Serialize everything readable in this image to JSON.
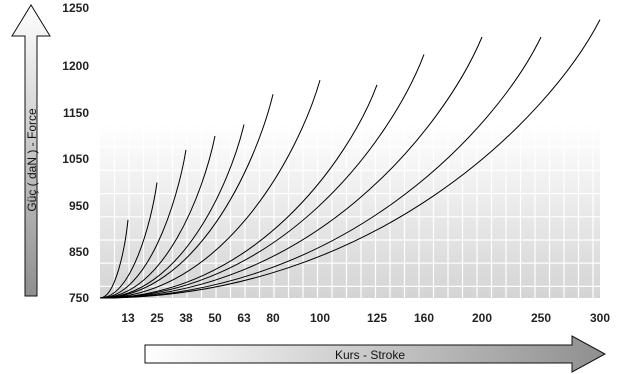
{
  "chart_data": {
    "type": "line",
    "xlabel": "Kurs - Stroke",
    "ylabel": "Güç ( daN ) - Force",
    "x_ticks": [
      "13",
      "25",
      "38",
      "50",
      "63",
      "80",
      "100",
      "125",
      "160",
      "200",
      "250",
      "300"
    ],
    "y_ticks": [
      "750",
      "850",
      "950",
      "1050",
      "1150",
      "1200",
      "1250"
    ],
    "grid": true,
    "series": [
      {
        "x": [
          0,
          13
        ],
        "y": [
          750,
          920
        ],
        "end_tick": "13"
      },
      {
        "x": [
          0,
          25
        ],
        "y": [
          750,
          1000
        ],
        "end_tick": "25"
      },
      {
        "x": [
          0,
          38
        ],
        "y": [
          750,
          1070
        ],
        "end_tick": "38"
      },
      {
        "x": [
          0,
          50
        ],
        "y": [
          750,
          1100
        ],
        "end_tick": "50"
      },
      {
        "x": [
          0,
          63
        ],
        "y": [
          750,
          1125
        ],
        "end_tick": "63"
      },
      {
        "x": [
          0,
          80
        ],
        "y": [
          750,
          1170
        ],
        "end_tick": "80"
      },
      {
        "x": [
          0,
          100
        ],
        "y": [
          750,
          1185
        ],
        "end_tick": "100"
      },
      {
        "x": [
          0,
          125
        ],
        "y": [
          750,
          1180
        ],
        "end_tick": "125"
      },
      {
        "x": [
          0,
          160
        ],
        "y": [
          750,
          1210
        ],
        "end_tick": "160"
      },
      {
        "x": [
          0,
          200
        ],
        "y": [
          750,
          1225
        ],
        "end_tick": "200"
      },
      {
        "x": [
          0,
          250
        ],
        "y": [
          750,
          1225
        ],
        "end_tick": "250"
      },
      {
        "x": [
          0,
          300
        ],
        "y": [
          750,
          1240
        ],
        "end_tick": "300"
      }
    ],
    "colors": {
      "line": "#000000",
      "grid": "#ffffff",
      "bg_top": "#ffffff",
      "bg_bottom": "#d4d4d4",
      "arrow_light": "#ffffff",
      "arrow_dark": "#8f8f8f"
    }
  }
}
